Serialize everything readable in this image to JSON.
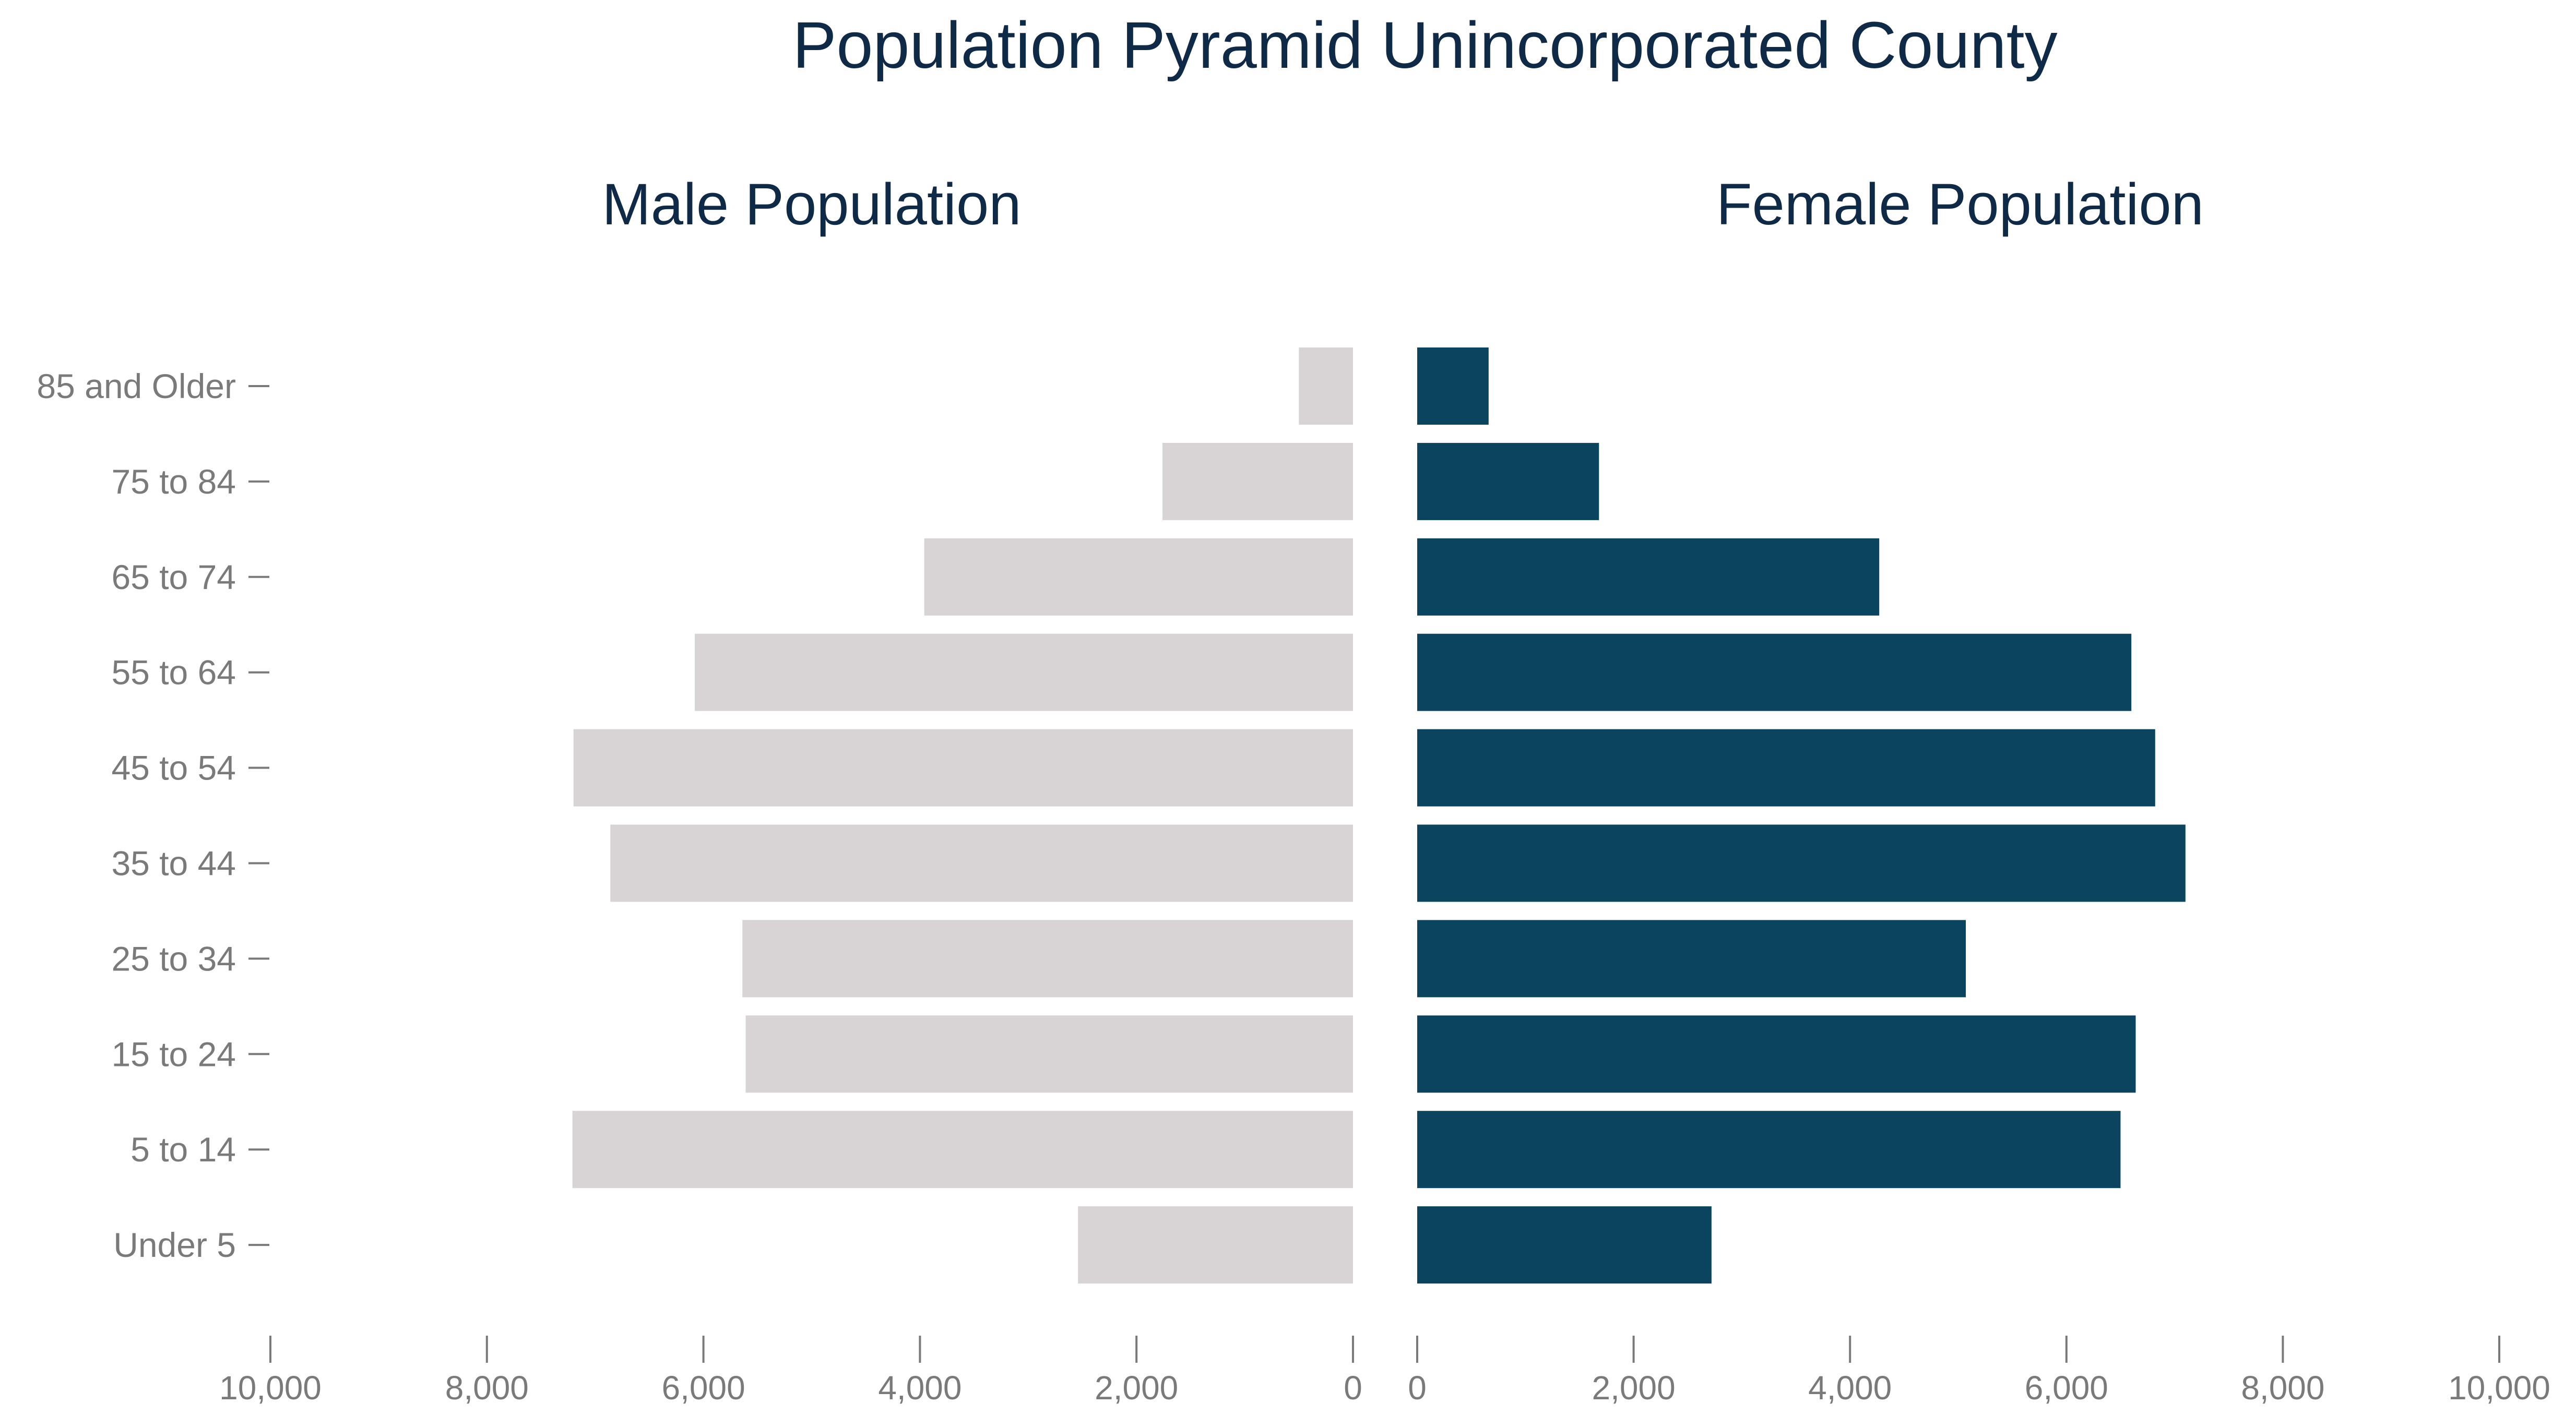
{
  "chart_data": {
    "type": "bar",
    "title": "Population Pyramid Unincorporated County",
    "categories": [
      "85 and Older",
      "75 to 84",
      "65 to 74",
      "55 to 64",
      "45 to 54",
      "35 to 44",
      "25 to 34",
      "15 to 24",
      "5 to 14",
      "Under 5"
    ],
    "series": [
      {
        "name": "Male Population",
        "color": "#d8d3d4",
        "values": [
          500,
          1760,
          3960,
          6080,
          7200,
          6860,
          5640,
          5610,
          7210,
          2540
        ],
        "xlim": [
          10000,
          0
        ],
        "ticks": [
          "10,000",
          "8,000",
          "6,000",
          "4,000",
          "2,000",
          "0"
        ]
      },
      {
        "name": "Female Population",
        "color": "#0a445e",
        "values": [
          660,
          1680,
          4270,
          6600,
          6820,
          7100,
          5070,
          6640,
          6500,
          2720
        ],
        "xlim": [
          0,
          10000
        ],
        "ticks": [
          "0",
          "2,000",
          "4,000",
          "6,000",
          "8,000",
          "10,000"
        ]
      }
    ],
    "grid": false,
    "legend": "none"
  }
}
